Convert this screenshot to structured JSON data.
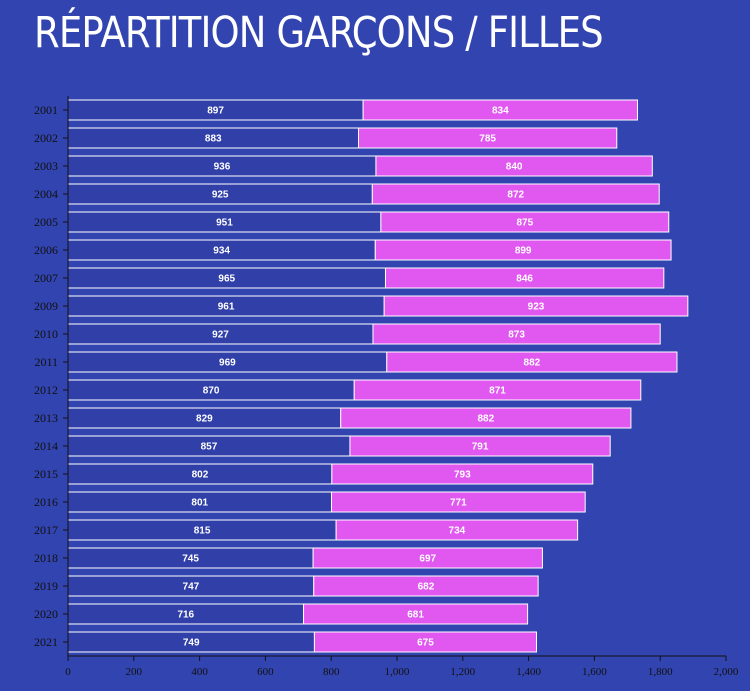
{
  "title": "RÉPARTITION GARÇONS / FILLES",
  "colors": {
    "background": "#3244b0",
    "garcons": "#3040a8",
    "filles": "#e058ef",
    "bar_stroke": "#ffffff",
    "axis": "#111111"
  },
  "chart_data": {
    "type": "bar",
    "orientation": "horizontal",
    "stacked": true,
    "categories": [
      "2001",
      "2002",
      "2003",
      "2004",
      "2005",
      "2006",
      "2007",
      "2009",
      "2010",
      "2011",
      "2012",
      "2013",
      "2014",
      "2015",
      "2016",
      "2017",
      "2018",
      "2019",
      "2020",
      "2021"
    ],
    "series": [
      {
        "values": [
          897,
          883,
          936,
          925,
          951,
          934,
          965,
          961,
          927,
          969,
          870,
          829,
          857,
          802,
          801,
          815,
          745,
          747,
          716,
          749
        ]
      },
      {
        "values": [
          834,
          785,
          840,
          872,
          875,
          899,
          846,
          923,
          873,
          882,
          871,
          882,
          791,
          793,
          771,
          734,
          697,
          682,
          681,
          675
        ]
      }
    ],
    "xlim": [
      0,
      2000
    ],
    "xticks": [
      0,
      200,
      400,
      600,
      800,
      1000,
      1200,
      1400,
      1600,
      1800,
      2000
    ],
    "xtick_labels": [
      "0",
      "200",
      "400",
      "600",
      "800",
      "1,000",
      "1,200",
      "1,400",
      "1,600",
      "1,800",
      "2,000"
    ],
    "data_labels": true,
    "grid": false,
    "legend": "none"
  }
}
